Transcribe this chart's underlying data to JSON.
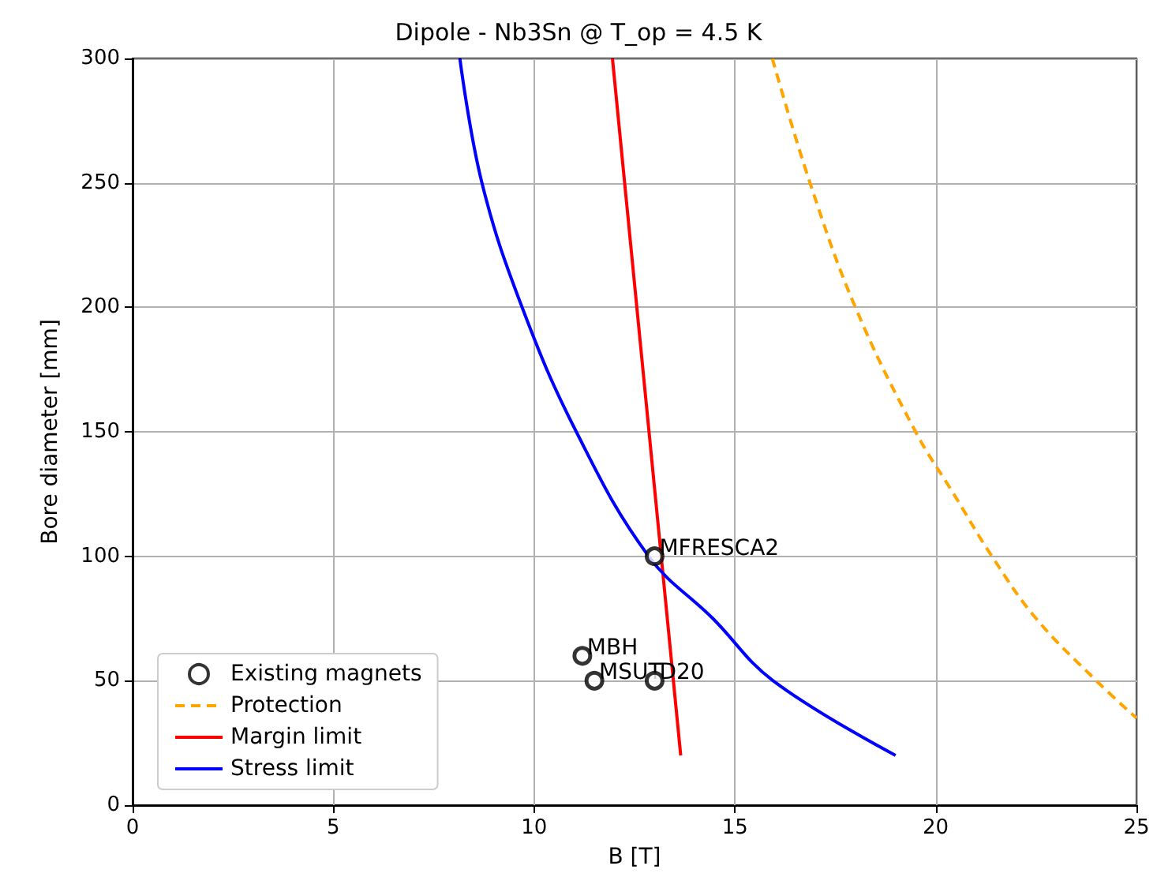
{
  "chart_data": {
    "type": "line",
    "title": "Dipole - Nb3Sn @ T_op = 4.5 K",
    "xlabel": "B [T]",
    "ylabel": "Bore diameter [mm]",
    "xlim": [
      0,
      25
    ],
    "xticks": [
      0,
      5,
      10,
      15,
      20,
      25
    ],
    "ylim": [
      0,
      300
    ],
    "yticks": [
      0,
      50,
      100,
      150,
      200,
      250,
      300
    ],
    "grid": true,
    "legend": "bottom left",
    "series": [
      {
        "name": "Existing magnets",
        "type": "scatter",
        "marker": "circle",
        "color": "#000000",
        "x": [
          13,
          11.2,
          11.5,
          13
        ],
        "values": [
          100,
          60,
          50,
          50
        ]
      },
      {
        "name": "Protection",
        "type": "line",
        "line_style": "dashed",
        "color": "#ffa500",
        "x": [
          15.93,
          16.87,
          18.0,
          19.5,
          20.45,
          21.4,
          22.5,
          24.0,
          25.0
        ],
        "values": [
          300,
          250,
          200,
          150,
          125,
          100,
          75,
          50,
          35
        ]
      },
      {
        "name": "Margin limit",
        "type": "line",
        "line_style": "solid",
        "color": "#ff0000",
        "x": [
          11.95,
          13.65
        ],
        "values": [
          300,
          20
        ]
      },
      {
        "name": "Stress limit",
        "type": "line",
        "line_style": "solid",
        "color": "#0000ff",
        "x": [
          8.15,
          8.7,
          9.7,
          11.05,
          12.85,
          14.45,
          15.95,
          19.0
        ],
        "values": [
          300,
          250,
          200,
          150,
          100,
          75,
          50,
          20
        ]
      }
    ],
    "annotations": [
      {
        "text": "MFRESCA2",
        "x": 13,
        "y": 100
      },
      {
        "text": "MBH",
        "x": 11.2,
        "y": 60
      },
      {
        "text": "MSUT",
        "x": 11.5,
        "y": 50
      },
      {
        "text": "D20",
        "x": 13,
        "y": 50
      }
    ]
  }
}
